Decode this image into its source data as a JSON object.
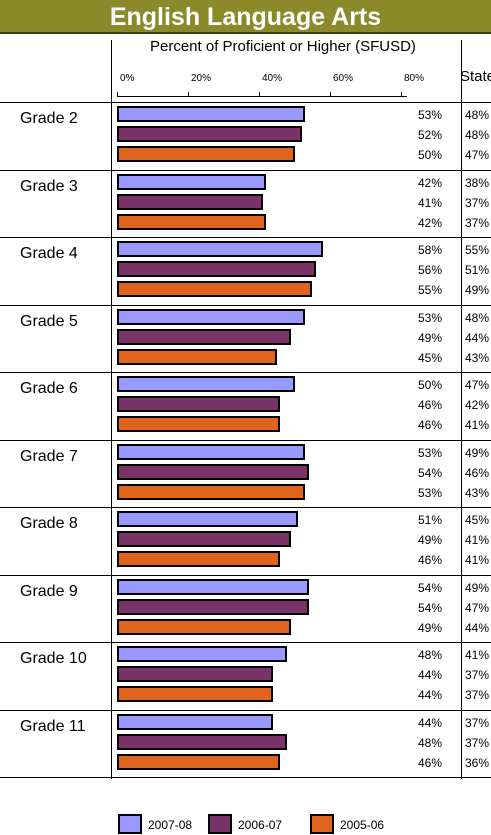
{
  "chart_data": {
    "type": "bar",
    "orientation": "horizontal",
    "title": "English Language Arts",
    "subtitle": "Percent of Proficient or Higher (SFUSD)",
    "state_column_label": "State",
    "x_ticks": [
      "0%",
      "20%",
      "40%",
      "60%",
      "80%"
    ],
    "xlim": [
      0,
      100
    ],
    "categories": [
      "Grade 2",
      "Grade 3",
      "Grade 4",
      "Grade 5",
      "Grade 6",
      "Grade 7",
      "Grade 8",
      "Grade 9",
      "Grade 10",
      "Grade 11"
    ],
    "series": [
      {
        "name": "2007-08",
        "color": "#9999ff",
        "values": [
          53,
          42,
          58,
          53,
          50,
          53,
          51,
          54,
          48,
          44
        ],
        "state_values": [
          48,
          38,
          55,
          48,
          47,
          49,
          45,
          49,
          41,
          37
        ]
      },
      {
        "name": "2006-07",
        "color": "#7a3366",
        "values": [
          52,
          41,
          56,
          49,
          46,
          54,
          49,
          54,
          44,
          48
        ],
        "state_values": [
          48,
          37,
          51,
          44,
          42,
          46,
          41,
          47,
          37,
          37
        ]
      },
      {
        "name": "2005-06",
        "color": "#e0641e",
        "values": [
          50,
          42,
          55,
          45,
          46,
          53,
          46,
          49,
          44,
          46
        ],
        "state_values": [
          47,
          37,
          49,
          43,
          41,
          43,
          41,
          44,
          37,
          36
        ]
      }
    ],
    "legend_position": "bottom"
  }
}
